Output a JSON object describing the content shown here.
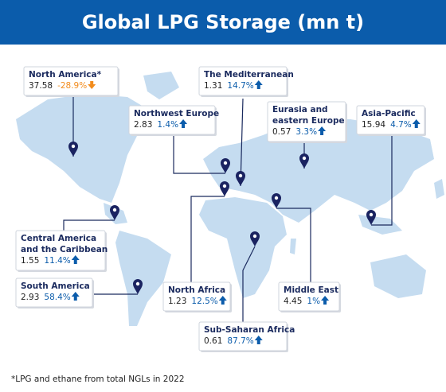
{
  "title": "Global LPG Storage (mn t)",
  "regions": [
    {
      "name": [
        "North America*"
      ],
      "value": 37.58,
      "change": "-28.9%"
    },
    {
      "name": [
        "The Mediterranean"
      ],
      "value": 1.31,
      "change": "14.7%"
    },
    {
      "name": [
        "Northwest Europe"
      ],
      "value": 2.83,
      "change": "1.4%"
    },
    {
      "name": [
        "Eurasia and",
        "eastern Europe"
      ],
      "value": 0.57,
      "change": "3.3%"
    },
    {
      "name": [
        "Asia-Pacific"
      ],
      "value": 15.94,
      "change": "4.7%"
    },
    {
      "name": [
        "Central America",
        "and the Caribbean"
      ],
      "value": 1.55,
      "change": "11.4%"
    },
    {
      "name": [
        "South America"
      ],
      "value": 2.93,
      "change": "58.4%"
    },
    {
      "name": [
        "North Africa"
      ],
      "value": 1.23,
      "change": "12.5%"
    },
    {
      "name": [
        "Middle East"
      ],
      "value": 4.45,
      "change": "1%"
    },
    {
      "name": [
        "Sub-Saharan Africa"
      ],
      "value": 0.61,
      "change": "87.7%"
    }
  ],
  "footnote": "*LPG and ethane from total NGLs in 2022"
}
